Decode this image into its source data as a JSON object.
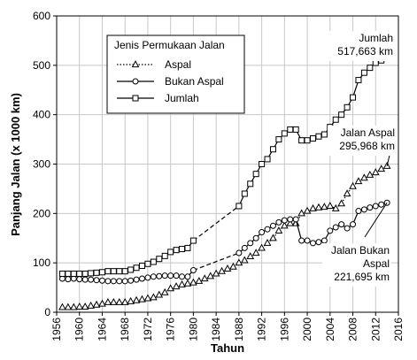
{
  "chart_data": {
    "type": "line",
    "xlabel": "Tahun",
    "ylabel": "Panjang Jalan (x 1000 km)",
    "xlim": [
      1956,
      2016
    ],
    "ylim": [
      0,
      600
    ],
    "x_ticks": [
      1956,
      1960,
      1964,
      1968,
      1972,
      1976,
      1980,
      1984,
      1988,
      1992,
      1996,
      2000,
      2004,
      2008,
      2012,
      2016
    ],
    "y_ticks": [
      0,
      100,
      200,
      300,
      400,
      500,
      600
    ],
    "grid": true,
    "legend": {
      "title": "Jenis Permukaan Jalan",
      "position": "top-left"
    },
    "series": [
      {
        "name": "Aspal",
        "marker": "triangle",
        "line": "dotted",
        "points": [
          [
            1957,
            10
          ],
          [
            1958,
            10
          ],
          [
            1959,
            10
          ],
          [
            1960,
            11
          ],
          [
            1961,
            11
          ],
          [
            1962,
            13
          ],
          [
            1963,
            15
          ],
          [
            1964,
            17
          ],
          [
            1965,
            20
          ],
          [
            1966,
            20
          ],
          [
            1967,
            20
          ],
          [
            1968,
            20
          ],
          [
            1969,
            22
          ],
          [
            1970,
            24
          ],
          [
            1971,
            26
          ],
          [
            1972,
            28
          ],
          [
            1973,
            30
          ],
          [
            1974,
            35
          ],
          [
            1975,
            40
          ],
          [
            1976,
            48
          ],
          [
            1977,
            52
          ],
          [
            1978,
            56
          ],
          [
            1979,
            58
          ],
          [
            1980,
            60
          ],
          [
            1981,
            63
          ],
          [
            1982,
            68
          ],
          [
            1983,
            73
          ],
          [
            1984,
            78
          ],
          [
            1985,
            83
          ],
          [
            1986,
            88
          ],
          [
            1987,
            92
          ],
          [
            1988,
            100
          ],
          [
            1989,
            105
          ],
          [
            1990,
            113
          ],
          [
            1991,
            120
          ],
          [
            1992,
            130
          ],
          [
            1993,
            140
          ],
          [
            1994,
            150
          ],
          [
            1995,
            165
          ],
          [
            1996,
            175
          ],
          [
            1997,
            180
          ],
          [
            1998,
            180
          ],
          [
            1999,
            200
          ],
          [
            2000,
            205
          ],
          [
            2001,
            210
          ],
          [
            2002,
            212
          ],
          [
            2003,
            213
          ],
          [
            2004,
            215
          ],
          [
            2005,
            210
          ],
          [
            2006,
            220
          ],
          [
            2007,
            240
          ],
          [
            2008,
            255
          ],
          [
            2009,
            265
          ],
          [
            2010,
            272
          ],
          [
            2011,
            278
          ],
          [
            2012,
            283
          ],
          [
            2013,
            290
          ],
          [
            2014,
            296
          ]
        ]
      },
      {
        "name": "Bukan Aspal",
        "marker": "circle",
        "line": "solid",
        "points": [
          [
            1957,
            68
          ],
          [
            1958,
            67
          ],
          [
            1959,
            68
          ],
          [
            1960,
            67
          ],
          [
            1961,
            66
          ],
          [
            1962,
            66
          ],
          [
            1963,
            65
          ],
          [
            1964,
            64
          ],
          [
            1965,
            63
          ],
          [
            1966,
            63
          ],
          [
            1967,
            63
          ],
          [
            1968,
            63
          ],
          [
            1969,
            64
          ],
          [
            1970,
            66
          ],
          [
            1971,
            68
          ],
          [
            1972,
            70
          ],
          [
            1973,
            72
          ],
          [
            1974,
            73
          ],
          [
            1975,
            74
          ],
          [
            1976,
            74
          ],
          [
            1977,
            74
          ],
          [
            1978,
            72
          ],
          [
            1979,
            72
          ],
          [
            1980,
            85
          ],
          [
            1988,
            120
          ],
          [
            1989,
            130
          ],
          [
            1990,
            140
          ],
          [
            1991,
            150
          ],
          [
            1992,
            162
          ],
          [
            1993,
            168
          ],
          [
            1994,
            175
          ],
          [
            1995,
            182
          ],
          [
            1996,
            186
          ],
          [
            1997,
            188
          ],
          [
            1998,
            188
          ],
          [
            1999,
            145
          ],
          [
            2000,
            145
          ],
          [
            2001,
            140
          ],
          [
            2002,
            142
          ],
          [
            2003,
            145
          ],
          [
            2004,
            165
          ],
          [
            2005,
            172
          ],
          [
            2006,
            178
          ],
          [
            2007,
            170
          ],
          [
            2008,
            178
          ],
          [
            2009,
            205
          ],
          [
            2010,
            208
          ],
          [
            2011,
            212
          ],
          [
            2012,
            215
          ],
          [
            2013,
            218
          ],
          [
            2014,
            221.695
          ]
        ]
      },
      {
        "name": "Jumlah",
        "marker": "square",
        "line": "solid",
        "points": [
          [
            1957,
            78
          ],
          [
            1958,
            78
          ],
          [
            1959,
            78
          ],
          [
            1960,
            78
          ],
          [
            1961,
            78
          ],
          [
            1962,
            79
          ],
          [
            1963,
            80
          ],
          [
            1964,
            81
          ],
          [
            1965,
            83
          ],
          [
            1966,
            83
          ],
          [
            1967,
            83
          ],
          [
            1968,
            83
          ],
          [
            1969,
            86
          ],
          [
            1970,
            90
          ],
          [
            1971,
            94
          ],
          [
            1972,
            98
          ],
          [
            1973,
            102
          ],
          [
            1974,
            108
          ],
          [
            1975,
            114
          ],
          [
            1976,
            122
          ],
          [
            1977,
            126
          ],
          [
            1978,
            128
          ],
          [
            1979,
            130
          ],
          [
            1980,
            145
          ],
          [
            1988,
            215
          ],
          [
            1989,
            240
          ],
          [
            1990,
            260
          ],
          [
            1991,
            280
          ],
          [
            1992,
            300
          ],
          [
            1993,
            310
          ],
          [
            1994,
            330
          ],
          [
            1995,
            350
          ],
          [
            1996,
            362
          ],
          [
            1997,
            370
          ],
          [
            1998,
            370
          ],
          [
            1999,
            348
          ],
          [
            2000,
            348
          ],
          [
            2001,
            352
          ],
          [
            2002,
            356
          ],
          [
            2003,
            360
          ],
          [
            2004,
            375
          ],
          [
            2005,
            390
          ],
          [
            2006,
            400
          ],
          [
            2007,
            415
          ],
          [
            2008,
            435
          ],
          [
            2009,
            470
          ],
          [
            2010,
            485
          ],
          [
            2011,
            495
          ],
          [
            2012,
            505
          ],
          [
            2013,
            510
          ],
          [
            2014,
            517.663
          ]
        ]
      }
    ],
    "annotations": [
      {
        "series": "Jumlah",
        "line1": "Jumlah",
        "line2": "517,663 km"
      },
      {
        "series": "Aspal",
        "line1": "Jalan Aspal",
        "line2": "295,968 km"
      },
      {
        "series": "Bukan Aspal",
        "line1": "Jalan Bukan",
        "line2": "Aspal",
        "line3": "221,695 km"
      }
    ]
  }
}
